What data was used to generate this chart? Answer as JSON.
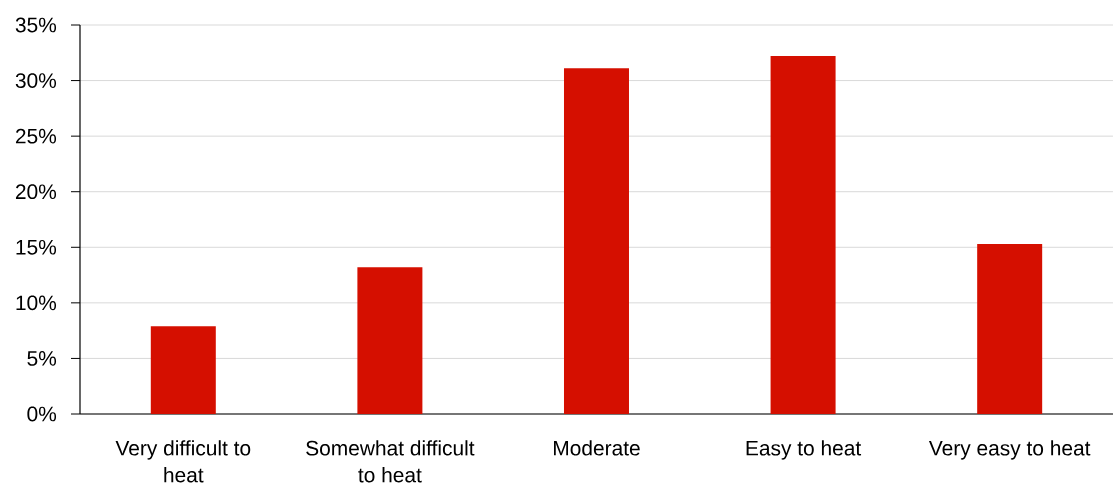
{
  "chart_data": {
    "type": "bar",
    "categories": [
      "Very difficult to heat",
      "Somewhat difficult to heat",
      "Moderate",
      "Easy to heat",
      "Very easy to heat"
    ],
    "values": [
      7.9,
      13.2,
      31.1,
      32.2,
      15.3
    ],
    "color": "#d50f00",
    "ylim": [
      0,
      35
    ],
    "yticks": [
      {
        "value": 0,
        "label": "0%"
      },
      {
        "value": 5,
        "label": "5%"
      },
      {
        "value": 10,
        "label": "10%"
      },
      {
        "value": 15,
        "label": "15%"
      },
      {
        "value": 20,
        "label": "20%"
      },
      {
        "value": 25,
        "label": "25%"
      },
      {
        "value": 30,
        "label": "30%"
      },
      {
        "value": 35,
        "label": "35%"
      }
    ],
    "grid": "y"
  }
}
